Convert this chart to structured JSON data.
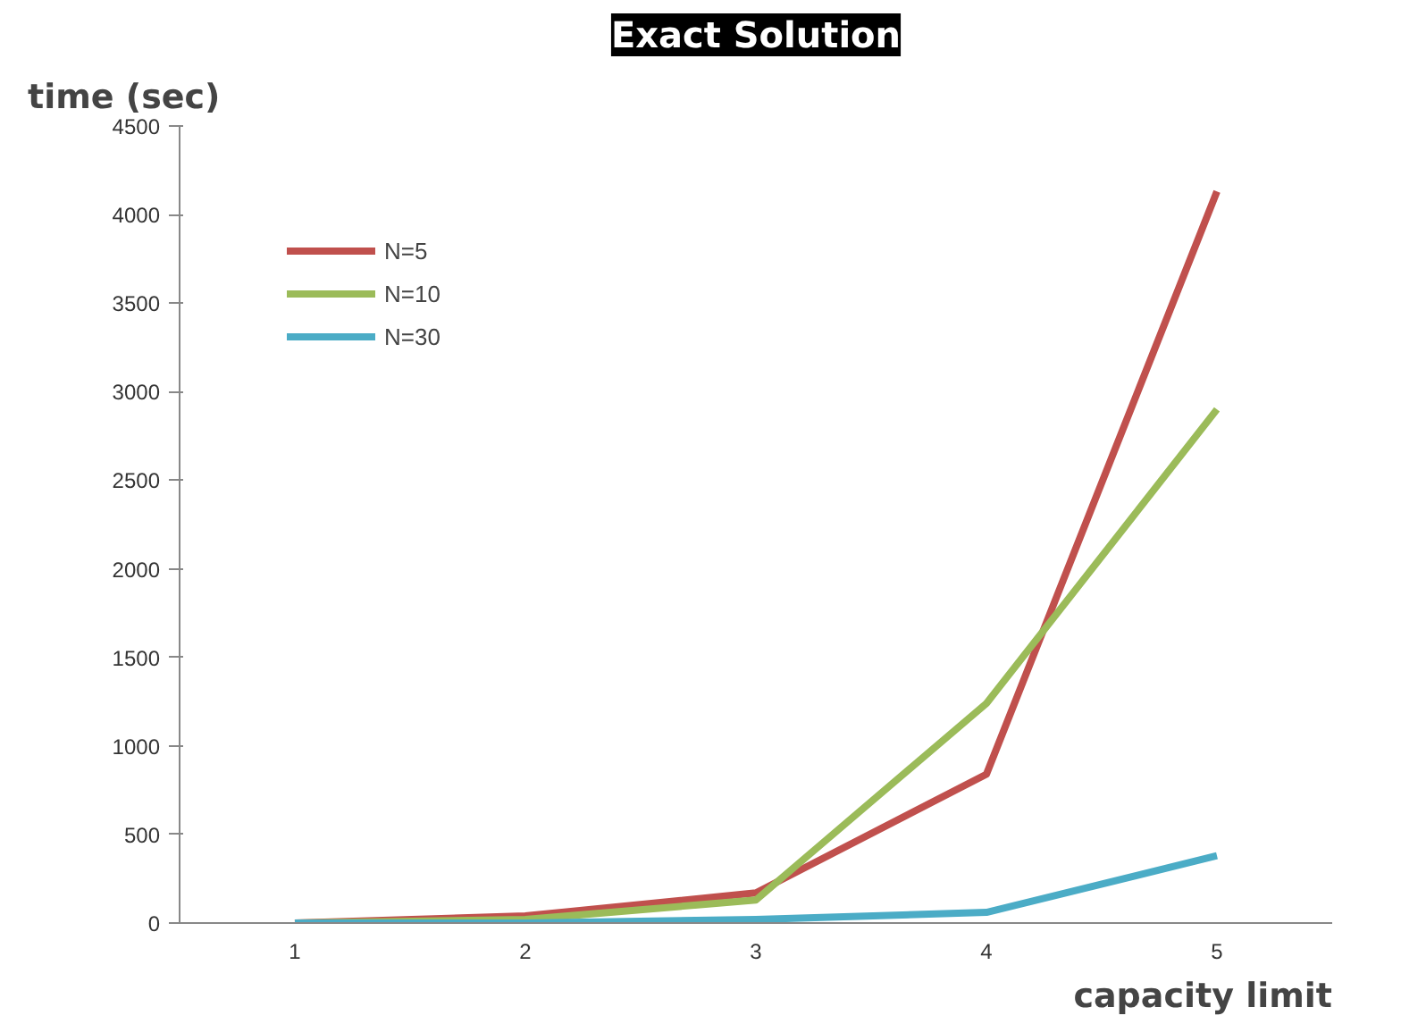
{
  "chart_data": {
    "type": "line",
    "title": "Exact Solution",
    "ylabel": "time (sec)",
    "xlabel": "capacity limit",
    "categories": [
      "1",
      "2",
      "3",
      "4",
      "5"
    ],
    "series": [
      {
        "name": "N=5",
        "color": "#c0504d",
        "values": [
          0,
          40,
          170,
          840,
          4130
        ]
      },
      {
        "name": "N=10",
        "color": "#9bbb59",
        "values": [
          0,
          20,
          130,
          1240,
          2900
        ]
      },
      {
        "name": "N=30",
        "color": "#4bacc6",
        "values": [
          0,
          0,
          20,
          60,
          380
        ]
      }
    ],
    "ylim": [
      0,
      4500
    ],
    "yticks": [
      0,
      500,
      1000,
      1500,
      2000,
      2500,
      3000,
      3500,
      4000,
      4500
    ],
    "grid": false,
    "legend": "top left",
    "marker": "none",
    "line_style": "solid"
  }
}
